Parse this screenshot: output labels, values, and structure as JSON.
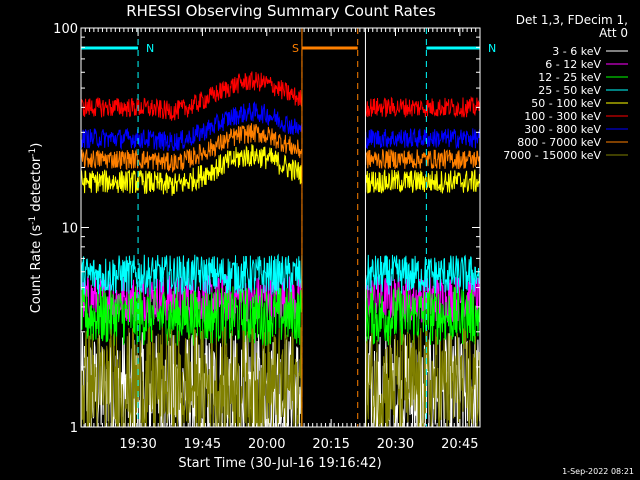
{
  "chart_data": {
    "type": "line",
    "title": "RHESSI Observing Summary Count Rates",
    "xlabel": "Start Time (30-Jul-16 19:16:42)",
    "ylabel": "Count Rate (s",
    "ylabel_sup": "-1",
    "ylabel_tail": " detector",
    "ylabel_sup2": "-1",
    "ylabel_end": ")",
    "y_scale": "log",
    "ylim": [
      1,
      100
    ],
    "xlim_minutes": [
      0,
      93
    ],
    "y_ticks": [
      {
        "value": 1,
        "label": "1"
      },
      {
        "value": 10,
        "label": "10"
      },
      {
        "value": 100,
        "label": "100"
      }
    ],
    "x_ticks": [
      {
        "minute": 13.3,
        "label": "19:30"
      },
      {
        "minute": 28.3,
        "label": "19:45"
      },
      {
        "minute": 43.3,
        "label": "20:00"
      },
      {
        "minute": 58.3,
        "label": "20:15"
      },
      {
        "minute": 73.3,
        "label": "20:30"
      },
      {
        "minute": 88.3,
        "label": "20:45"
      }
    ],
    "data_gap_minutes": [
      51.5,
      66.3
    ],
    "header": [
      "Det 1,3, FDecim 1,",
      "Att 0"
    ],
    "legend_placement": "right",
    "series": [
      {
        "name": "3 - 6 keV",
        "color": "#ffffff",
        "level": 1.5,
        "profile": "flat",
        "noise": 0.3
      },
      {
        "name": "6 - 12 keV",
        "color": "#ff00ff",
        "level": 4.4,
        "profile": "flat",
        "noise": 0.12
      },
      {
        "name": "12 - 25 keV",
        "color": "#00ff00",
        "level": 3.6,
        "profile": "flat",
        "noise": 0.15
      },
      {
        "name": "25 - 50 keV",
        "color": "#00ffff",
        "level": 5.8,
        "profile": "flat",
        "noise": 0.1
      },
      {
        "name": "50 - 100 keV",
        "color": "#ffff00",
        "level": 17,
        "profile": "hump",
        "noise": 0.06
      },
      {
        "name": "100 - 300 keV",
        "color": "#ff0000",
        "level": 40,
        "profile": "hump",
        "noise": 0.05
      },
      {
        "name": "300 - 800 keV",
        "color": "#0000ff",
        "level": 28,
        "profile": "hump",
        "noise": 0.05
      },
      {
        "name": "800 - 7000 keV",
        "color": "#ff8000",
        "level": 22,
        "profile": "hump",
        "noise": 0.05
      },
      {
        "name": "7000 - 15000 keV",
        "color": "#808000",
        "level": 1.6,
        "profile": "flat",
        "noise": 0.3
      }
    ],
    "annotations": [
      {
        "label": "N",
        "color": "#00ffff",
        "start_minute": 0,
        "end_minute": 13.3
      },
      {
        "label": "N",
        "color": "#00ffff",
        "start_minute": 80.5,
        "end_minute": 93
      },
      {
        "label": "S",
        "color": "#ff8000",
        "start_minute": 51.5,
        "end_minute": 64.5
      }
    ],
    "footer": "1-Sep-2022 08:21"
  }
}
